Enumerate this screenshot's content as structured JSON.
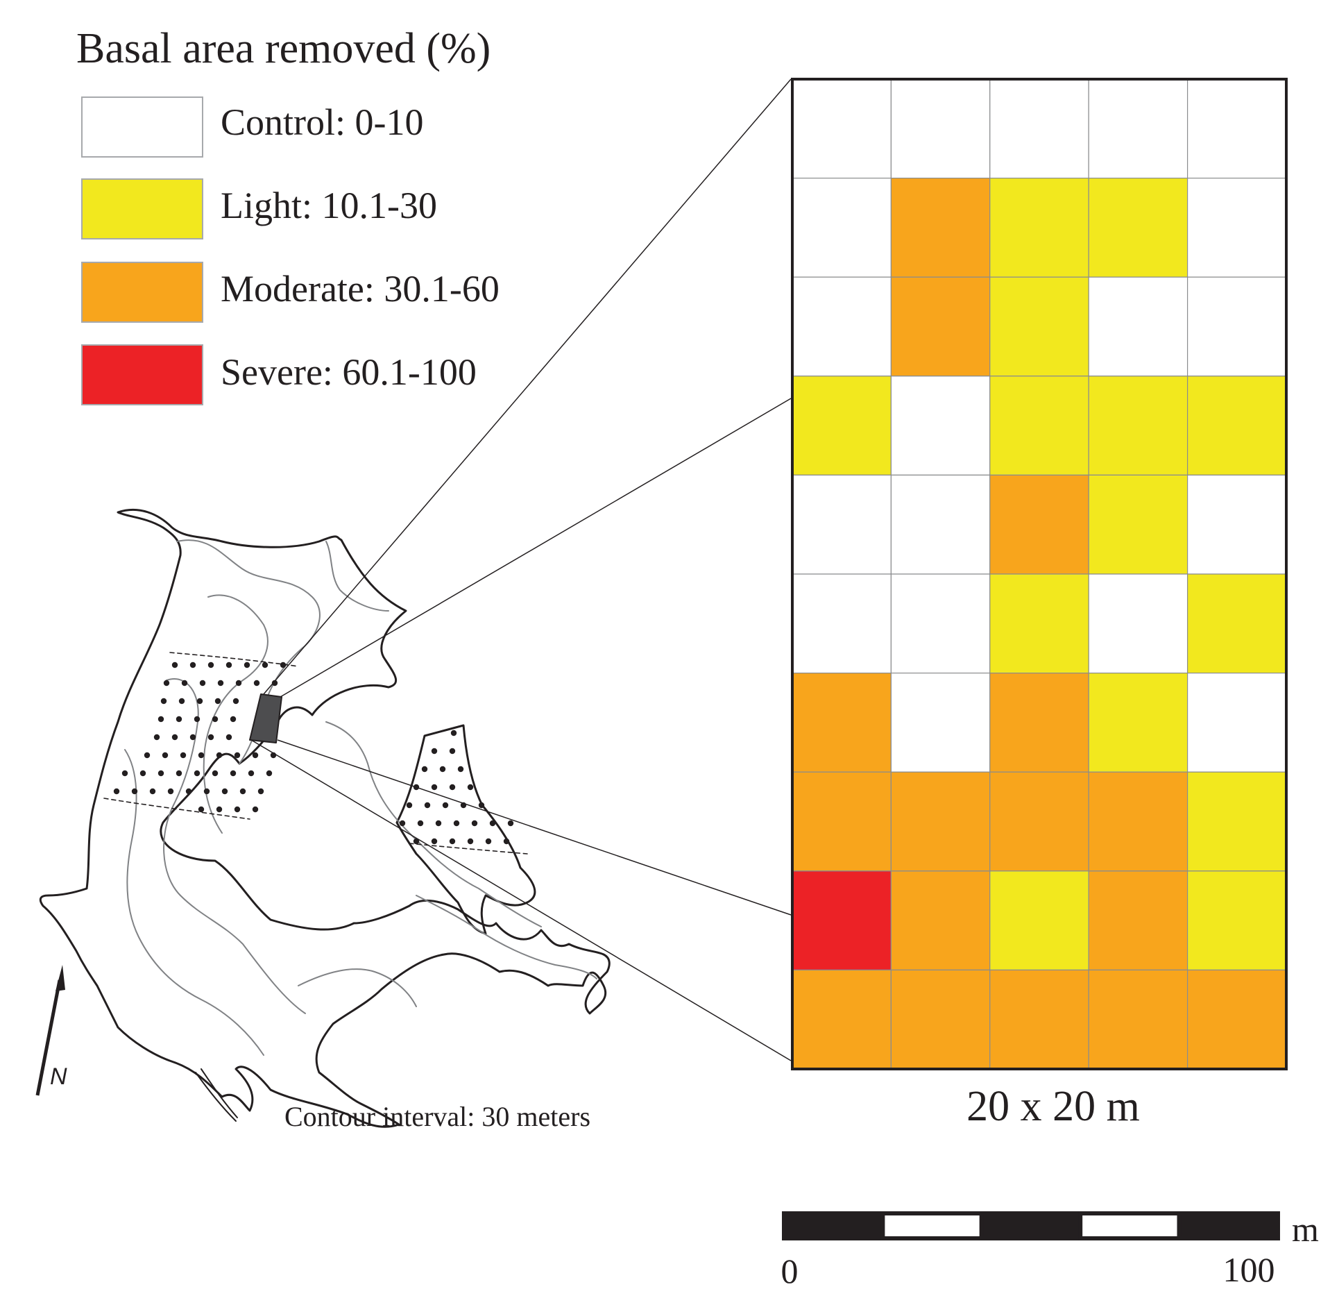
{
  "legend": {
    "title": "Basal area removed (%)",
    "items": [
      {
        "key": "control",
        "label": "Control: 0-10",
        "color": "#ffffff"
      },
      {
        "key": "light",
        "label": "Light: 10.1-30",
        "color": "#f2e81e"
      },
      {
        "key": "moderate",
        "label": "Moderate: 30.1-60",
        "color": "#f8a51c"
      },
      {
        "key": "severe",
        "label": "Severe: 60.1-100",
        "color": "#ec2226"
      }
    ]
  },
  "grid": {
    "columns": 5,
    "rows": 10,
    "cells": [
      [
        "control",
        "control",
        "control",
        "control",
        "control"
      ],
      [
        "control",
        "moderate",
        "light",
        "light",
        "control"
      ],
      [
        "control",
        "moderate",
        "light",
        "control",
        "control"
      ],
      [
        "light",
        "control",
        "light",
        "light",
        "light"
      ],
      [
        "control",
        "control",
        "moderate",
        "light",
        "control"
      ],
      [
        "control",
        "control",
        "light",
        "control",
        "light"
      ],
      [
        "moderate",
        "control",
        "moderate",
        "light",
        "control"
      ],
      [
        "moderate",
        "moderate",
        "moderate",
        "moderate",
        "light"
      ],
      [
        "severe",
        "moderate",
        "light",
        "moderate",
        "light"
      ],
      [
        "moderate",
        "moderate",
        "moderate",
        "moderate",
        "moderate"
      ]
    ],
    "cell_size_label": "20 x 20 m"
  },
  "map": {
    "contour_label": "Contour interval: 30 meters",
    "north_label": "N"
  },
  "scalebar": {
    "unit": "m",
    "min_label": "0",
    "max_label": "100",
    "segments": 5
  }
}
